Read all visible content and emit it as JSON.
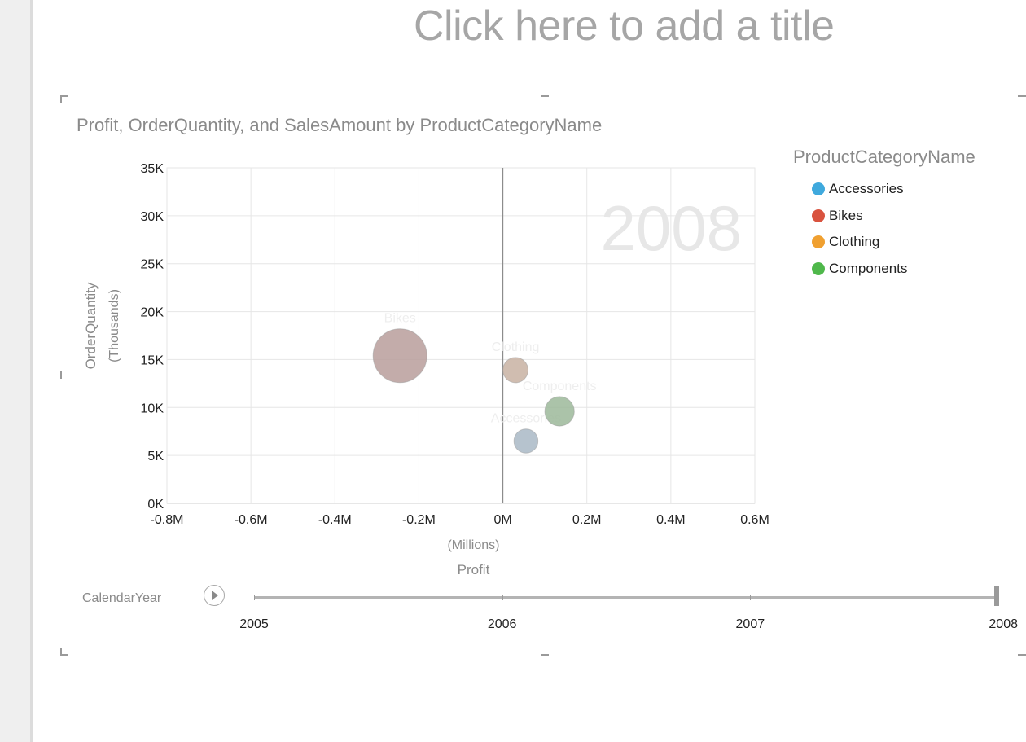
{
  "page": {
    "title_placeholder": "Click here to add a title"
  },
  "chart_data": {
    "type": "scatter",
    "title": "Profit, OrderQuantity, and SalesAmount by ProductCategoryName",
    "xlabel": "Profit",
    "x_unit": "(Millions)",
    "ylabel": "OrderQuantity",
    "y_unit": "(Thousands)",
    "xlim": [
      -0.8,
      0.6
    ],
    "ylim": [
      0,
      35
    ],
    "x_ticks": [
      -0.8,
      -0.6,
      -0.4,
      -0.2,
      0,
      0.2,
      0.4,
      0.6
    ],
    "x_tick_labels": [
      "-0.8M",
      "-0.6M",
      "-0.4M",
      "-0.2M",
      "0M",
      "0.2M",
      "0.4M",
      "0.6M"
    ],
    "y_ticks": [
      0,
      5,
      10,
      15,
      20,
      25,
      30,
      35
    ],
    "y_tick_labels": [
      "0K",
      "5K",
      "10K",
      "15K",
      "20K",
      "25K",
      "30K",
      "35K"
    ],
    "grid": true,
    "play_value_watermark": "2008",
    "size_measure": "SalesAmount",
    "legend": {
      "title": "ProductCategoryName",
      "placement": "right"
    },
    "series": [
      {
        "name": "Accessories",
        "color": "#3fa9dd",
        "x": 0.055,
        "y": 6.5,
        "size": 0.2
      },
      {
        "name": "Bikes",
        "color": "#d9533f",
        "x": -0.245,
        "y": 15.4,
        "size": 1.0
      },
      {
        "name": "Clothing",
        "color": "#f0a030",
        "x": 0.03,
        "y": 13.9,
        "size": 0.22
      },
      {
        "name": "Components",
        "color": "#4fb84b",
        "x": 0.135,
        "y": 9.6,
        "size": 0.3
      }
    ],
    "bubble_color": "#b8a09e",
    "bubble_colors": {
      "Accessories": "#a9b8c6",
      "Bikes": "#b89d9b",
      "Clothing": "#c8b2a2",
      "Components": "#9cb89a"
    }
  },
  "play_axis": {
    "label": "CalendarYear",
    "years": [
      "2005",
      "2006",
      "2007",
      "2008"
    ],
    "current": "2008"
  }
}
